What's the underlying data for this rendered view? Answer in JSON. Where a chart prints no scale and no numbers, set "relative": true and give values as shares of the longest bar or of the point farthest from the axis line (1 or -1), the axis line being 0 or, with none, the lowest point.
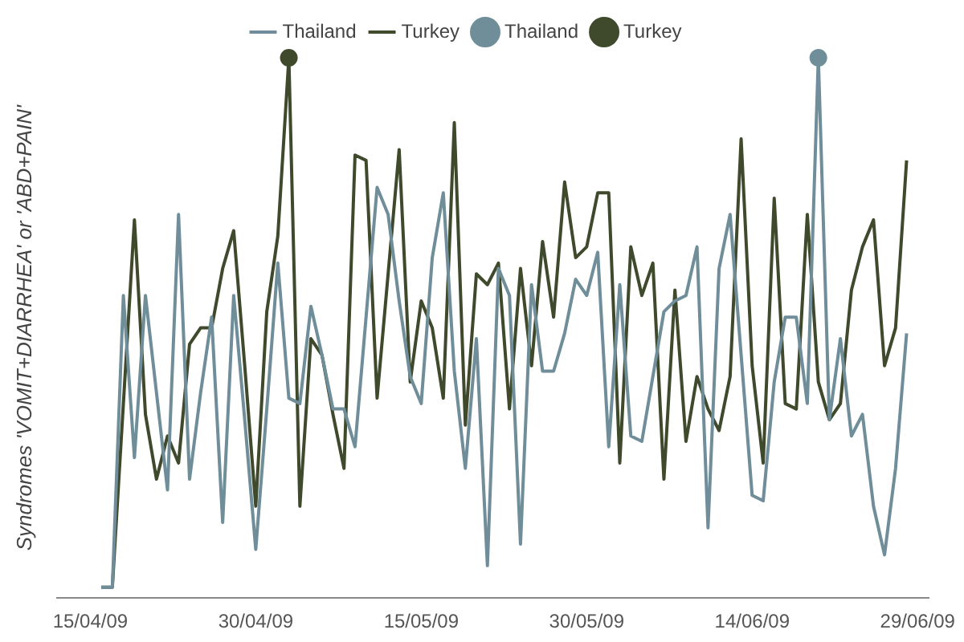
{
  "chart_data": {
    "type": "line",
    "ylabel": "Syndromes 'VOMIT+DIARRHEA' or 'ABD+PAIN'",
    "relative": true,
    "legend": "top",
    "grid": false,
    "x": [
      "--04-16",
      "--04-17",
      "--04-18",
      "--04-19",
      "--04-20",
      "--04-21",
      "--04-22",
      "--04-23",
      "--04-24",
      "--04-25",
      "--04-26",
      "--04-27",
      "--04-28",
      "--04-29",
      "--04-30",
      "--05-01",
      "--05-02",
      "--05-03",
      "--05-04",
      "--05-05",
      "--05-06",
      "--05-07",
      "--05-08",
      "--05-09",
      "--05-10",
      "--05-11",
      "--05-12",
      "--05-13",
      "--05-14",
      "--05-15",
      "--05-16",
      "--05-17",
      "--05-18",
      "--05-19",
      "--05-20",
      "--05-21",
      "--05-22",
      "--05-23",
      "--05-24",
      "--05-25",
      "--05-26",
      "--05-27",
      "--05-28",
      "--05-29",
      "--05-30",
      "--05-31",
      "--06-01",
      "--06-02",
      "--06-03",
      "--06-04",
      "--06-05",
      "--06-06",
      "--06-07",
      "--06-08",
      "--06-09",
      "--06-10",
      "--06-11",
      "--06-12",
      "--06-13",
      "--06-14",
      "--06-15",
      "--06-16",
      "--06-17",
      "--06-18",
      "--06-19",
      "--06-20",
      "--06-21",
      "--06-22",
      "--06-23",
      "--06-24",
      "--06-25",
      "--06-26",
      "--06-27",
      "--06-28"
    ],
    "xlim": [
      "--04-12",
      "--06-30"
    ],
    "xticks": [
      {
        "value": "--04-15",
        "label": "15/04/09"
      },
      {
        "value": "--04-30",
        "label": "30/04/09"
      },
      {
        "value": "--05-15",
        "label": "15/05/09"
      },
      {
        "value": "--05-30",
        "label": "30/05/09"
      },
      {
        "value": "--06-14",
        "label": "14/06/09"
      },
      {
        "value": "--06-29",
        "label": "29/06/09"
      }
    ],
    "series": [
      {
        "name": "Thailand",
        "type": "line",
        "marker": "none",
        "color": "#6f8e99",
        "values": [
          0.02,
          0.02,
          0.56,
          0.26,
          0.56,
          0.38,
          0.2,
          0.71,
          0.22,
          0.38,
          0.52,
          0.14,
          0.56,
          0.33,
          0.09,
          0.35,
          0.62,
          0.37,
          0.36,
          0.54,
          0.45,
          0.35,
          0.35,
          0.28,
          0.52,
          0.76,
          0.71,
          0.55,
          0.41,
          0.36,
          0.63,
          0.75,
          0.42,
          0.24,
          0.48,
          0.06,
          0.61,
          0.56,
          0.1,
          0.58,
          0.42,
          0.42,
          0.49,
          0.59,
          0.56,
          0.64,
          0.28,
          0.58,
          0.3,
          0.29,
          0.41,
          0.53,
          0.55,
          0.56,
          0.65,
          0.13,
          0.61,
          0.71,
          0.45,
          0.19,
          0.18,
          0.4,
          0.52,
          0.52,
          0.36,
          1,
          0.33,
          0.48,
          0.3,
          0.34,
          0.17,
          0.08,
          0.24,
          0.49
        ]
      },
      {
        "name": "Turkey",
        "type": "line",
        "marker": "none",
        "color": "#3f4a2c",
        "values": [
          0.02,
          0.02,
          0.36,
          0.7,
          0.34,
          0.22,
          0.3,
          0.25,
          0.47,
          0.5,
          0.5,
          0.61,
          0.68,
          0.43,
          0.17,
          0.53,
          0.67,
          1,
          0.17,
          0.48,
          0.45,
          0.34,
          0.24,
          0.82,
          0.81,
          0.37,
          0.6,
          0.83,
          0.4,
          0.55,
          0.5,
          0.37,
          0.88,
          0.32,
          0.6,
          0.58,
          0.62,
          0.35,
          0.61,
          0.43,
          0.66,
          0.52,
          0.77,
          0.63,
          0.65,
          0.75,
          0.75,
          0.25,
          0.65,
          0.56,
          0.62,
          0.22,
          0.57,
          0.29,
          0.41,
          0.35,
          0.31,
          0.41,
          0.85,
          0.43,
          0.25,
          0.74,
          0.36,
          0.35,
          0.71,
          0.4,
          0.33,
          0.36,
          0.57,
          0.65,
          0.7,
          0.43,
          0.5,
          0.81
        ]
      },
      {
        "name": "Thailand",
        "type": "scatter",
        "marker": "circle",
        "color": "#6f8e99",
        "x": [
          "--06-20"
        ],
        "values": [
          1
        ]
      },
      {
        "name": "Turkey",
        "type": "scatter",
        "marker": "circle",
        "color": "#3f4a2c",
        "x": [
          "--05-03"
        ],
        "values": [
          1
        ]
      }
    ]
  }
}
